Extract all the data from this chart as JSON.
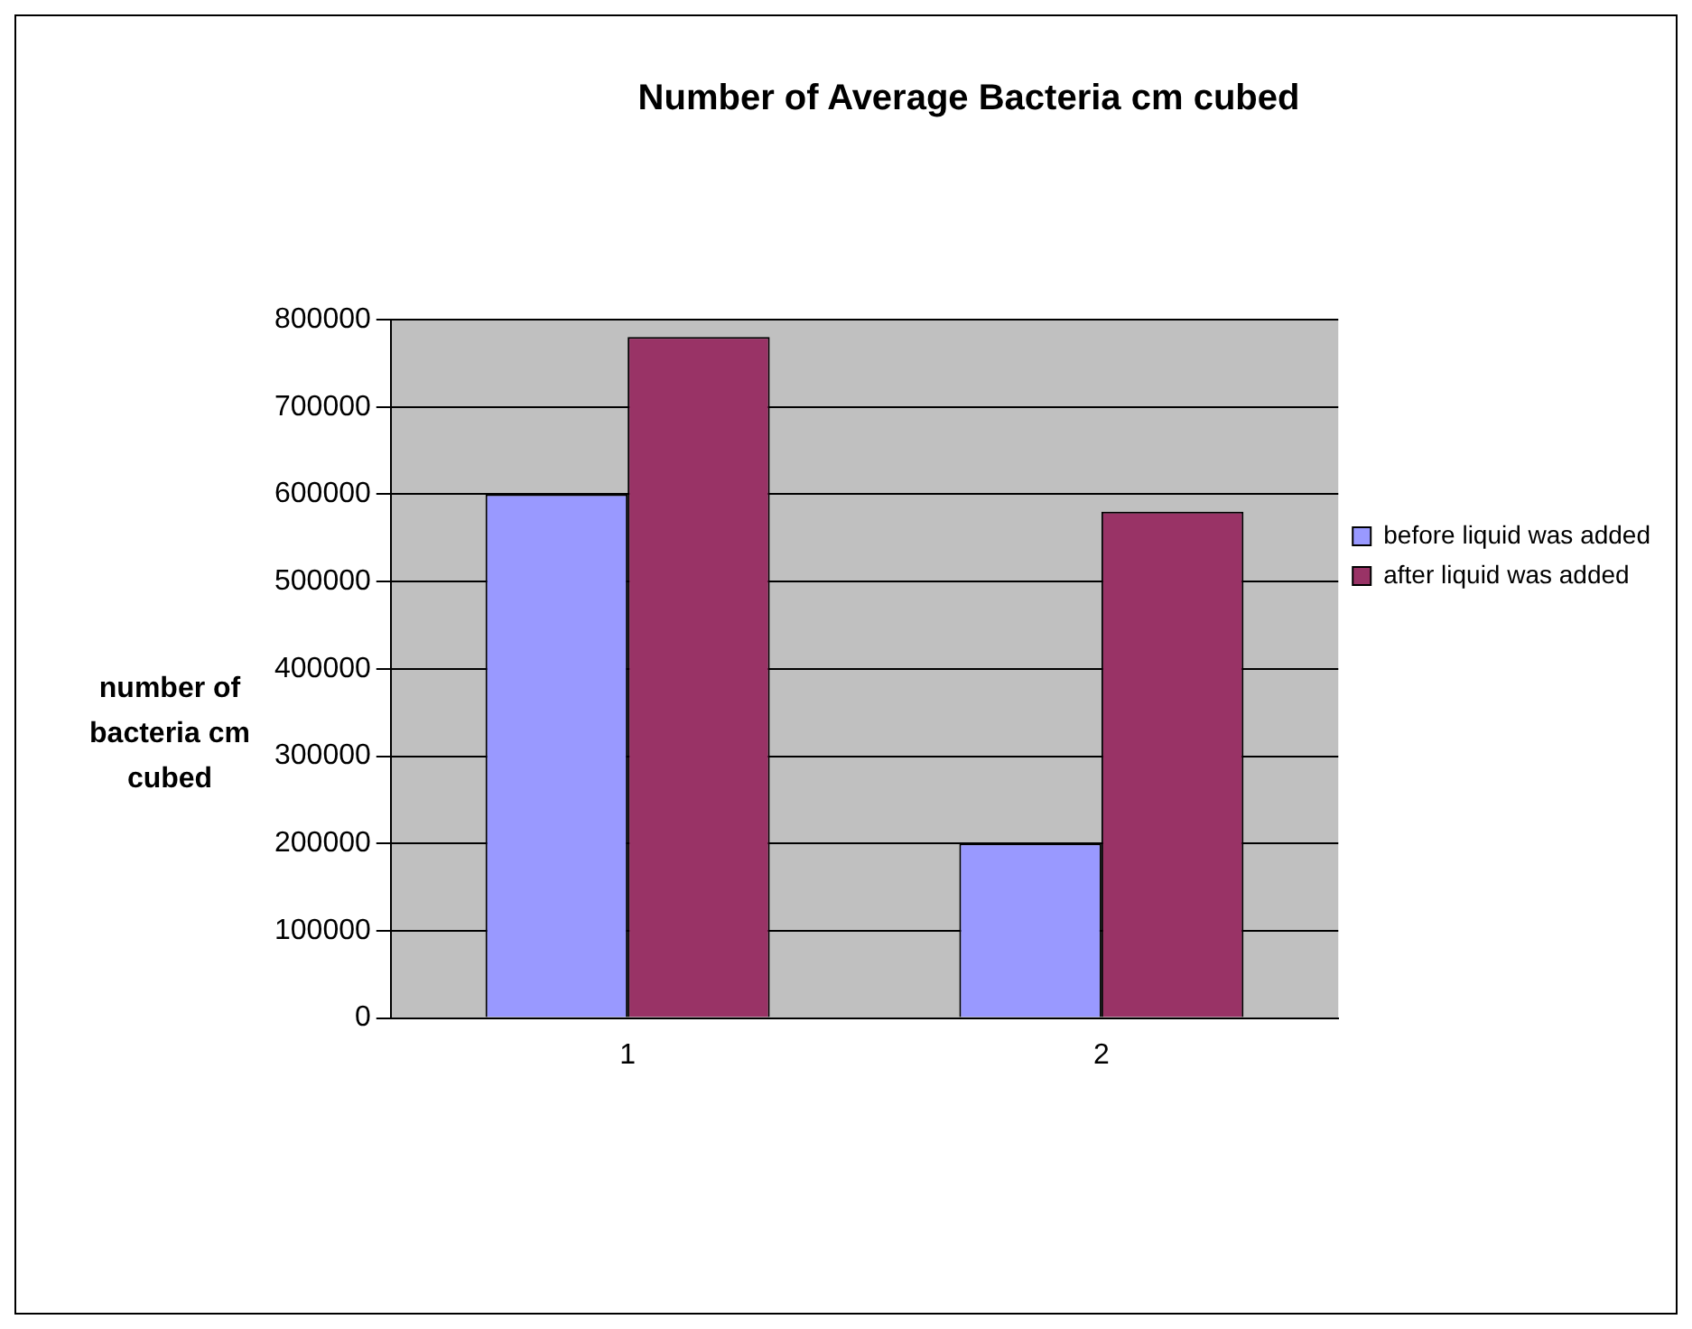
{
  "chart_data": {
    "type": "bar",
    "title": "Number of Average Bacteria cm cubed",
    "ylabel": "number of bacteria cm cubed",
    "categories": [
      "1",
      "2"
    ],
    "series": [
      {
        "name": "before liquid was added",
        "color": "#9999ff",
        "values": [
          600000,
          200000
        ]
      },
      {
        "name": "after liquid was added",
        "color": "#993366",
        "values": [
          780000,
          580000
        ]
      }
    ],
    "ylim": [
      0,
      800000
    ],
    "yticks": [
      0,
      100000,
      200000,
      300000,
      400000,
      500000,
      600000,
      700000,
      800000
    ],
    "grid": "y",
    "legend": "right"
  }
}
